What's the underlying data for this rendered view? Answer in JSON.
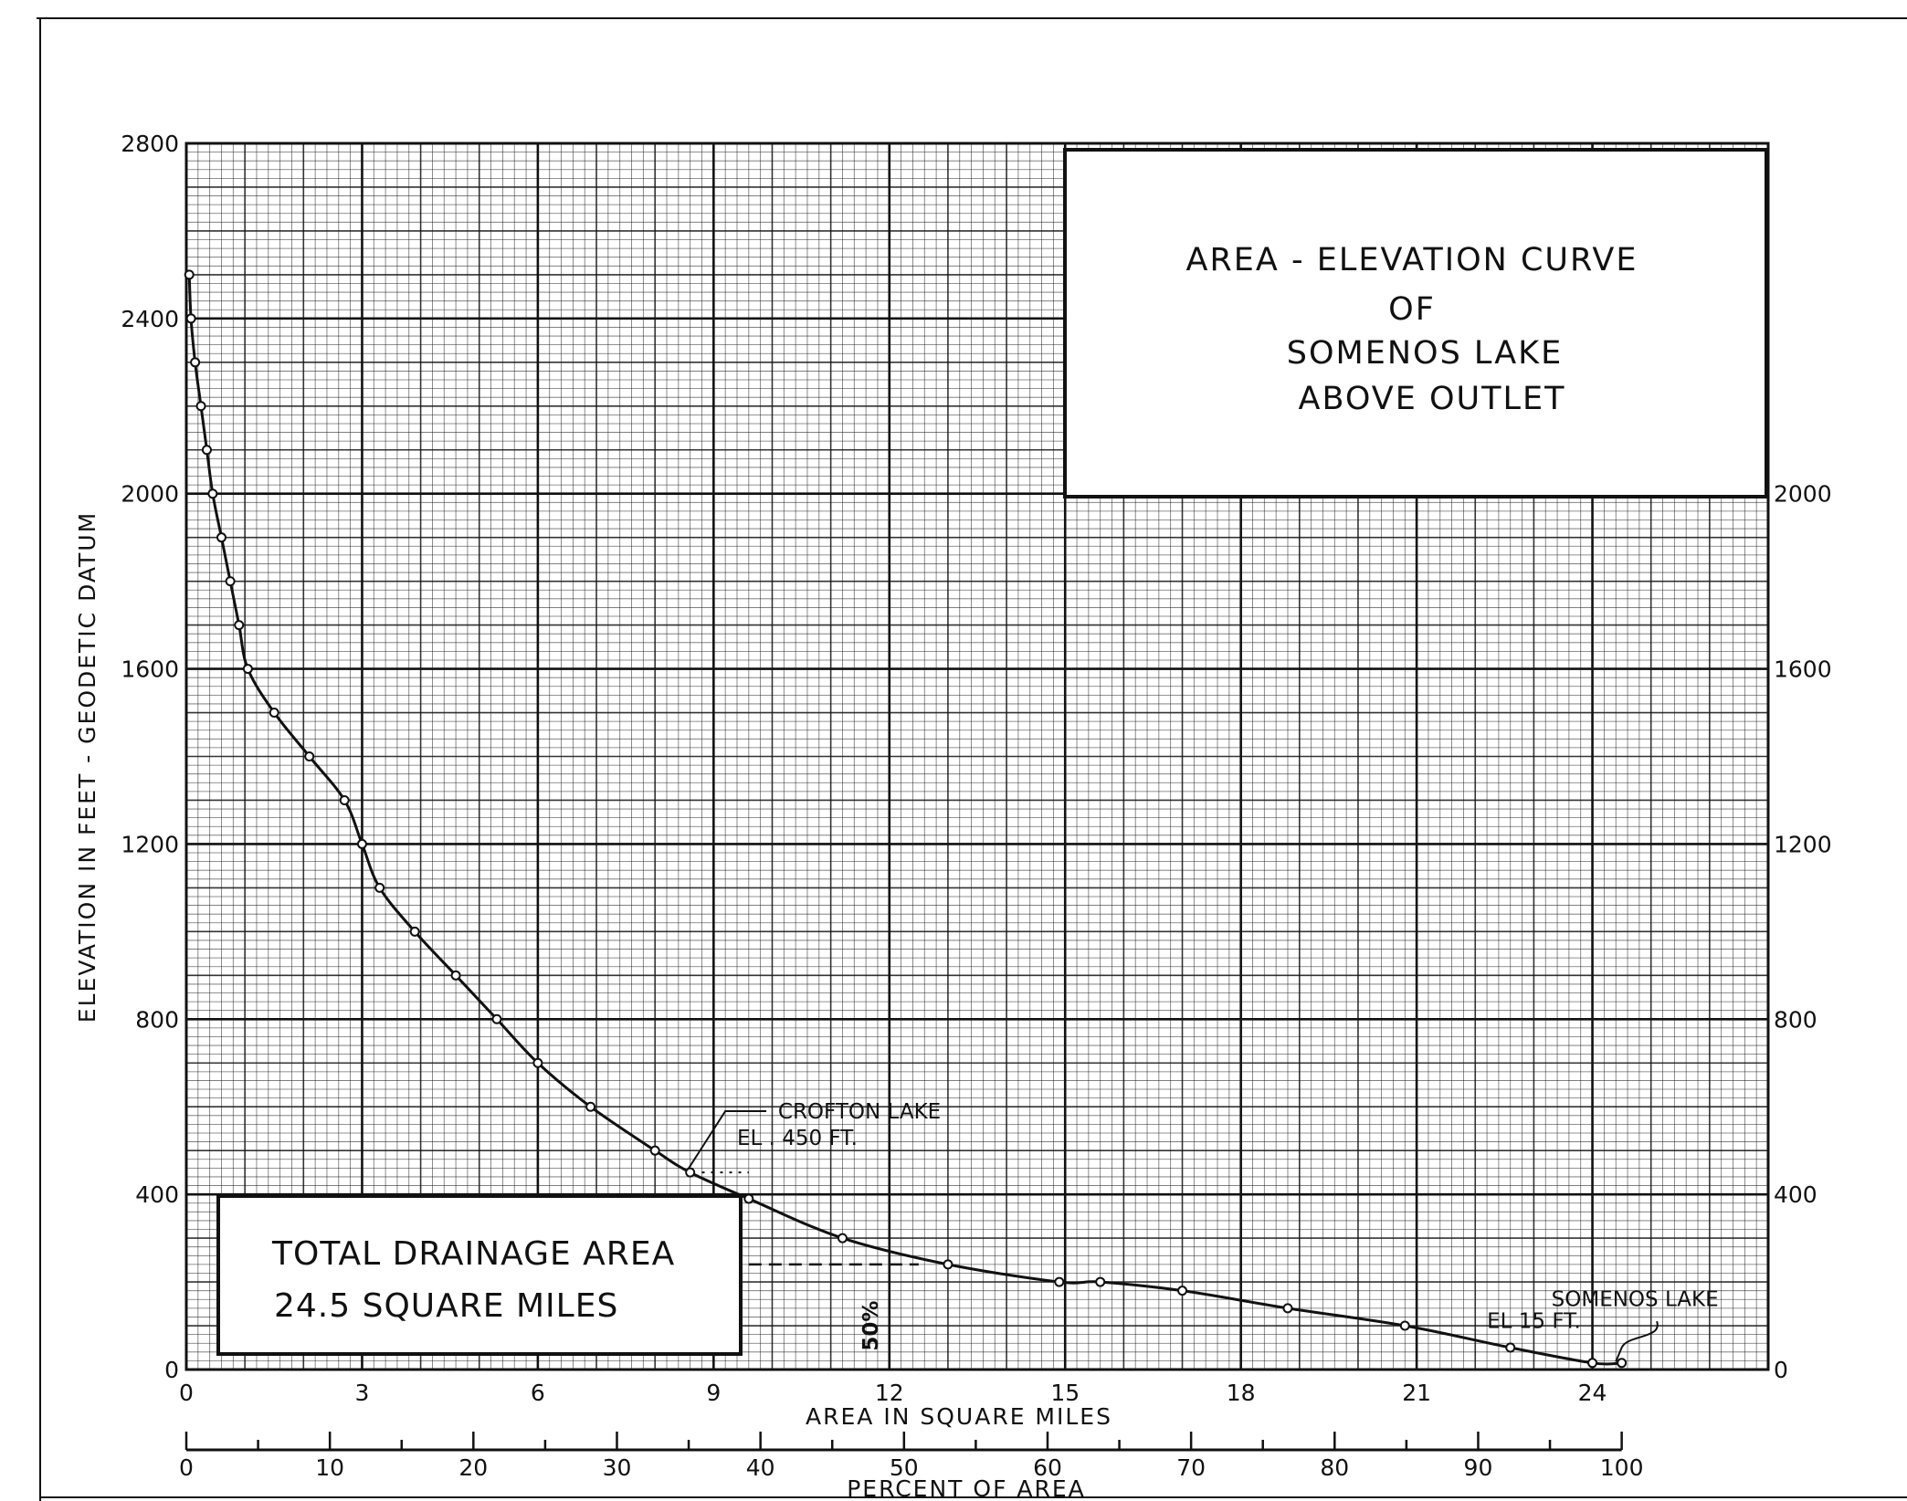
{
  "chart_data": {
    "type": "line",
    "title_lines": [
      "AREA - ELEVATION  CURVE",
      "OF",
      "SOMENOS LAKE",
      "ABOVE  OUTLET"
    ],
    "xlabel": "AREA  IN  SQUARE  MILES",
    "x2label": "PERCENT  OF  AREA",
    "ylabel": "ELEVATION   IN   FEET  -  GEODETIC   DATUM",
    "xlim": [
      0,
      27
    ],
    "ylim": [
      0,
      2800
    ],
    "x_ticks": [
      0,
      3,
      6,
      9,
      12,
      15,
      18,
      21,
      24
    ],
    "x_tick_labels": [
      "0",
      "3",
      "6",
      "9",
      "12",
      "15",
      "18",
      "21",
      "24"
    ],
    "y_ticks": [
      0,
      400,
      800,
      1200,
      1600,
      2000,
      2400,
      2800
    ],
    "y_tick_labels": [
      "0",
      "400",
      "800",
      "1200",
      "1600",
      "2000",
      "2400",
      "2800"
    ],
    "y_right_ticks": [
      0,
      400,
      800,
      1200,
      1600,
      2000
    ],
    "y_right_tick_labels": [
      "0",
      "400",
      "800",
      "1200",
      "1600",
      "2000"
    ],
    "percent_ticks": [
      0,
      10,
      20,
      30,
      40,
      50,
      60,
      70,
      80,
      90,
      100
    ],
    "percent_tick_labels": [
      "0",
      "10",
      "20",
      "30",
      "40",
      "50",
      "60",
      "70",
      "80",
      "90",
      "100"
    ],
    "grid": true,
    "series": [
      {
        "points": [
          [
            0.05,
            2500
          ],
          [
            0.08,
            2400
          ],
          [
            0.15,
            2300
          ],
          [
            0.25,
            2200
          ],
          [
            0.35,
            2100
          ],
          [
            0.45,
            2000
          ],
          [
            0.6,
            1900
          ],
          [
            0.75,
            1800
          ],
          [
            0.9,
            1700
          ],
          [
            1.05,
            1600
          ],
          [
            1.5,
            1500
          ],
          [
            2.1,
            1400
          ],
          [
            2.7,
            1300
          ],
          [
            3.0,
            1200
          ],
          [
            3.3,
            1100
          ],
          [
            3.9,
            1000
          ],
          [
            4.6,
            900
          ],
          [
            5.3,
            800
          ],
          [
            6.0,
            700
          ],
          [
            6.9,
            600
          ],
          [
            8.0,
            500
          ],
          [
            8.6,
            450
          ],
          [
            9.6,
            390
          ],
          [
            11.2,
            300
          ],
          [
            13.0,
            240
          ],
          [
            14.9,
            200
          ],
          [
            15.6,
            200
          ],
          [
            17.0,
            180
          ],
          [
            18.8,
            140
          ],
          [
            20.8,
            100
          ],
          [
            22.6,
            50
          ],
          [
            24.0,
            15
          ],
          [
            24.5,
            15
          ]
        ]
      }
    ],
    "annotations": {
      "crofton": [
        "CROFTON LAKE",
        "EL .  450 FT."
      ],
      "somenos": [
        "SOMENOS LAKE",
        "EL    15 FT."
      ],
      "fifty_percent": "50%",
      "drainage": [
        "TOTAL DRAINAGE AREA",
        "24.5   SQUARE  MILES"
      ]
    }
  }
}
